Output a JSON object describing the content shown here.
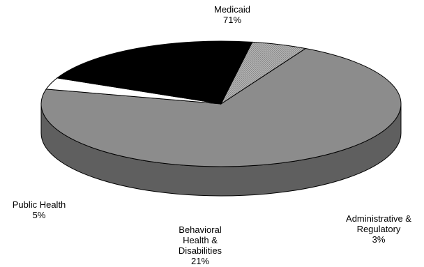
{
  "chart_data": {
    "type": "pie",
    "three_d": true,
    "title": "",
    "slices": [
      {
        "name": "Medicaid",
        "label_lines": [
          "Medicaid"
        ],
        "value_label": "71%",
        "value": 71,
        "color": "#8c8c8c",
        "side_color": "#5f5f5f",
        "pattern": "solid"
      },
      {
        "name": "Administrative & Regulatory",
        "label_lines": [
          "Administrative &",
          "Regulatory"
        ],
        "value_label": "3%",
        "value": 3,
        "color": "#ffffff",
        "side_color": "#6e6e6e",
        "pattern": "solid"
      },
      {
        "name": "Behavioral Health & Disabilities",
        "label_lines": [
          "Behavioral",
          "Health &",
          "Disabilities"
        ],
        "value_label": "21%",
        "value": 21,
        "color": "#000000",
        "side_color": "#000000",
        "pattern": "solid"
      },
      {
        "name": "Public Health",
        "label_lines": [
          "Public Health"
        ],
        "value_label": "5%",
        "value": 5,
        "color": "#a8a8a8",
        "side_color": "#8a8a8a",
        "pattern": "hatched"
      }
    ]
  }
}
